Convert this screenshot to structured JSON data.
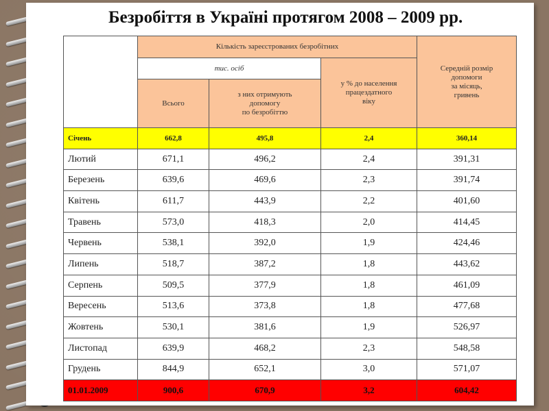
{
  "title": "Безробіття в Україні протягом 2008 – 2009 рр.",
  "header": {
    "registered": "Кількість зареєстрованих безробітних",
    "thousands": "тис. осіб",
    "total": "Всього",
    "receiving_line1": "з них отримують",
    "receiving_line2": "допомогу",
    "receiving_line3": "по безробіттю",
    "percent_line1": "у % до населення",
    "percent_line2": "працездатного",
    "percent_line3": "віку",
    "avg_line1": "Середній розмір",
    "avg_line2": "допомоги",
    "avg_line3": "за місяць,",
    "avg_line4": "гривень"
  },
  "rows": [
    {
      "month": "Січень",
      "total": "662,8",
      "receiving": "495,8",
      "percent": "2,4",
      "avg": "360,14"
    },
    {
      "month": "Лютий",
      "total": "671,1",
      "receiving": "496,2",
      "percent": "2,4",
      "avg": "391,31"
    },
    {
      "month": "Березень",
      "total": "639,6",
      "receiving": "469,6",
      "percent": "2,3",
      "avg": "391,74"
    },
    {
      "month": "Квітень",
      "total": "611,7",
      "receiving": "443,9",
      "percent": "2,2",
      "avg": "401,60"
    },
    {
      "month": "Травень",
      "total": "573,0",
      "receiving": "418,3",
      "percent": "2,0",
      "avg": "414,45"
    },
    {
      "month": "Червень",
      "total": "538,1",
      "receiving": "392,0",
      "percent": "1,9",
      "avg": "424,46"
    },
    {
      "month": "Липень",
      "total": "518,7",
      "receiving": "387,2",
      "percent": "1,8",
      "avg": "443,62"
    },
    {
      "month": "Серпень",
      "total": "509,5",
      "receiving": "377,9",
      "percent": "1,8",
      "avg": "461,09"
    },
    {
      "month": "Вересень",
      "total": "513,6",
      "receiving": "373,8",
      "percent": "1,8",
      "avg": "477,68"
    },
    {
      "month": "Жовтень",
      "total": "530,1",
      "receiving": "381,6",
      "percent": "1,9",
      "avg": "526,97"
    },
    {
      "month": "Листопад",
      "total": "639,9",
      "receiving": "468,2",
      "percent": "2,3",
      "avg": "548,58"
    },
    {
      "month": "Грудень",
      "total": "844,9",
      "receiving": "652,1",
      "percent": "3,0",
      "avg": "571,07"
    },
    {
      "month": "01.01.2009",
      "total": "900,6",
      "receiving": "670,9",
      "percent": "3,2",
      "avg": "604,42"
    }
  ],
  "colors": {
    "header_bg": "#fbc49a",
    "highlight_first": "#ffff00",
    "highlight_last": "#ff0000",
    "background": "#8a7563"
  }
}
